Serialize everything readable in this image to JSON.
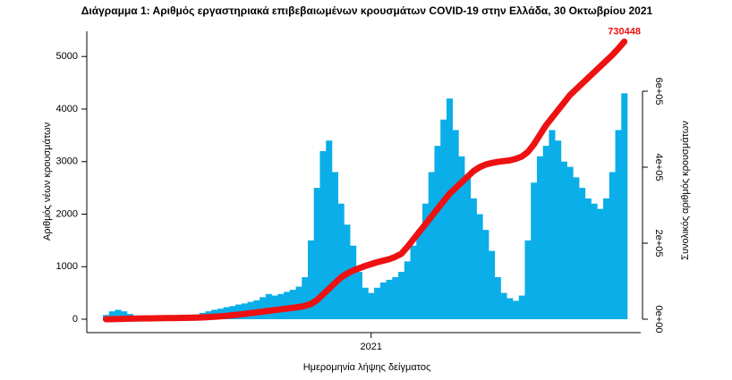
{
  "chart_data": {
    "type": "bar",
    "title": "Διάγραμμα 1: Αριθμός εργαστηριακά επιβεβαιωμένων κρουσμάτων COVID-19 στην Ελλάδα, 30 Οκτωβρίου 2021",
    "x_label": "Ημερομηνία λήψης δείγματος",
    "y_label": "Αριθμός νέων κρουσμάτων",
    "y2_label": "Συνολικός αριθμός κρουσμάτων",
    "categories": [
      null,
      null,
      null,
      null,
      null,
      null,
      null,
      null,
      null,
      null,
      null,
      null,
      null,
      null,
      null,
      null,
      null,
      null,
      null,
      null,
      null,
      null,
      null,
      null,
      null,
      null,
      null,
      null,
      null,
      null,
      null,
      null,
      null,
      null,
      null,
      null,
      null,
      null,
      null,
      null,
      null,
      null,
      null,
      null,
      "2021",
      null,
      null,
      null,
      null,
      null,
      null,
      null,
      null,
      null,
      null,
      null,
      null,
      null,
      null,
      null,
      null,
      null,
      null,
      null,
      null,
      null,
      null,
      null,
      null,
      null,
      null,
      null,
      null,
      null,
      null,
      null,
      null,
      null,
      null,
      null,
      null,
      null,
      null,
      null,
      null,
      null,
      null
    ],
    "series": [
      {
        "type": "bar",
        "color": "#0aaee8",
        "values": [
          80,
          150,
          180,
          150,
          100,
          60,
          40,
          30,
          25,
          20,
          20,
          25,
          30,
          40,
          60,
          90,
          120,
          150,
          180,
          200,
          230,
          250,
          280,
          300,
          330,
          360,
          420,
          480,
          450,
          480,
          520,
          560,
          620,
          800,
          1500,
          2500,
          3200,
          3400,
          2800,
          2200,
          1800,
          1400,
          900,
          600,
          500,
          600,
          700,
          750,
          800,
          900,
          1100,
          1400,
          1700,
          2200,
          2800,
          3300,
          3800,
          4200,
          3600,
          3100,
          2700,
          2300,
          2000,
          1700,
          1300,
          800,
          500,
          400,
          350,
          450,
          1500,
          2600,
          3100,
          3300,
          3600,
          3400,
          3000,
          2900,
          2700,
          2500,
          2300,
          2200,
          2100,
          2300,
          2800,
          3600,
          4300
        ]
      },
      {
        "type": "line",
        "axis": "y2",
        "color": "#ee1111",
        "values": [
          0,
          100,
          500,
          1000,
          1500,
          1800,
          2000,
          2200,
          2400,
          2600,
          2800,
          3000,
          3200,
          3500,
          3800,
          4200,
          4800,
          5500,
          6500,
          7500,
          9000,
          10500,
          12000,
          14000,
          16000,
          18000,
          20000,
          22000,
          24000,
          26000,
          28000,
          30000,
          32000,
          35000,
          40000,
          50000,
          65000,
          80000,
          95000,
          110000,
          120000,
          128000,
          134000,
          140000,
          145000,
          150000,
          154000,
          158000,
          164000,
          172000,
          190000,
          210000,
          230000,
          250000,
          270000,
          290000,
          310000,
          330000,
          345000,
          360000,
          375000,
          390000,
          400000,
          407000,
          411000,
          414000,
          416000,
          418000,
          422000,
          428000,
          440000,
          460000,
          485000,
          510000,
          530000,
          550000,
          570000,
          590000,
          605000,
          620000,
          635000,
          650000,
          665000,
          680000,
          695000,
          712000,
          730448
        ]
      }
    ],
    "ylim": [
      -255,
      5480
    ],
    "yticks": [
      0,
      1000,
      2000,
      3000,
      4000,
      5000
    ],
    "y2lim": [
      -35294,
      757647
    ],
    "y2ticks": [
      {
        "value": 0,
        "label": "0e+00"
      },
      {
        "value": 200000,
        "label": "2e+05"
      },
      {
        "value": 400000,
        "label": "4e+05"
      },
      {
        "value": 600000,
        "label": "6e+05"
      }
    ]
  }
}
